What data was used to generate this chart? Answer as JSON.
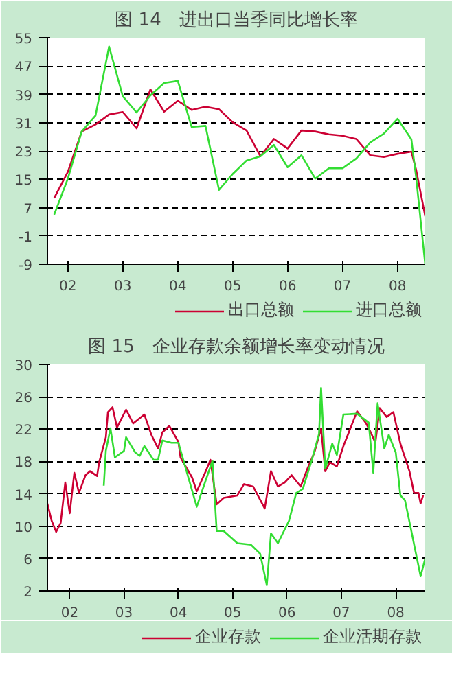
{
  "chart_data": [
    {
      "type": "line",
      "title": "图 14　进出口当季同比增长率",
      "xlim": [
        "2002-02-15",
        "2009-01-01"
      ],
      "ylim": [
        -9,
        55
      ],
      "yticks": [
        -9,
        -1,
        7,
        15,
        23,
        31,
        39,
        47,
        55
      ],
      "xticks": [
        {
          "value": "2002-07-01",
          "label": "02"
        },
        {
          "value": "2003-07-01",
          "label": "03"
        },
        {
          "value": "2004-07-01",
          "label": "04"
        },
        {
          "value": "2005-07-01",
          "label": "05"
        },
        {
          "value": "2006-07-01",
          "label": "06"
        },
        {
          "value": "2007-07-01",
          "label": "07"
        },
        {
          "value": "2008-07-01",
          "label": "08"
        }
      ],
      "grid": "y",
      "legend": "bottom",
      "line_style": "solid",
      "series": [
        {
          "name": "出口总额",
          "color": "#cc0033",
          "x": [
            "2002-04",
            "2002-07",
            "2002-10",
            "2003-01",
            "2003-04",
            "2003-07",
            "2003-10",
            "2004-01",
            "2004-04",
            "2004-07",
            "2004-10",
            "2005-01",
            "2005-04",
            "2005-07",
            "2005-10",
            "2006-01",
            "2006-04",
            "2006-07",
            "2006-10",
            "2007-01",
            "2007-04",
            "2007-07",
            "2007-10",
            "2008-01",
            "2008-04",
            "2008-07",
            "2008-10",
            "2008-11",
            "2009-01"
          ],
          "values": [
            9.7,
            17.1,
            28.5,
            30.5,
            33.3,
            34,
            29.4,
            40.4,
            34.1,
            37.2,
            34.6,
            35.5,
            34.8,
            31.1,
            28.8,
            21.5,
            26.4,
            23.7,
            28.8,
            28.5,
            27.7,
            27.3,
            26.4,
            21.8,
            21.3,
            22.2,
            22.8,
            17.8,
            4.6
          ]
        },
        {
          "name": "进口总额",
          "color": "#33dd33",
          "x": [
            "2002-04",
            "2002-07",
            "2002-10",
            "2003-01",
            "2003-04",
            "2003-07",
            "2003-10",
            "2004-01",
            "2004-04",
            "2004-07",
            "2004-10",
            "2005-01",
            "2005-04",
            "2005-07",
            "2005-10",
            "2006-01",
            "2006-04",
            "2006-07",
            "2006-10",
            "2007-01",
            "2007-04",
            "2007-07",
            "2007-10",
            "2008-01",
            "2008-04",
            "2008-07",
            "2008-10",
            "2008-11",
            "2009-01"
          ],
          "values": [
            5,
            15.2,
            28.5,
            33,
            52.5,
            38.5,
            33.9,
            38.7,
            42.2,
            42.8,
            29.8,
            30.1,
            12,
            16.5,
            20.3,
            21.5,
            24.7,
            18.4,
            21.8,
            15.2,
            18.1,
            18.1,
            20.9,
            25.4,
            27.9,
            32.1,
            26.3,
            15.8,
            -9
          ]
        }
      ]
    },
    {
      "type": "line",
      "title": "图 15　企业存款余额增长率变动情况",
      "xlim": [
        "2002-02-01",
        "2009-01-15"
      ],
      "ylim": [
        2,
        30
      ],
      "yticks": [
        2,
        6,
        10,
        14,
        18,
        22,
        26,
        30
      ],
      "xticks": [
        {
          "value": "2002-07-01",
          "label": "02"
        },
        {
          "value": "2003-07-01",
          "label": "03"
        },
        {
          "value": "2004-07-01",
          "label": "04"
        },
        {
          "value": "2005-07-01",
          "label": "05"
        },
        {
          "value": "2006-07-01",
          "label": "06"
        },
        {
          "value": "2007-07-01",
          "label": "07"
        },
        {
          "value": "2008-07-01",
          "label": "08"
        }
      ],
      "grid": "y",
      "legend": "bottom",
      "line_style": "solid",
      "series": [
        {
          "name": "企业存款",
          "color": "#cc0033",
          "x": [
            "2002-02-01",
            "2002-03-01",
            "2002-04-01",
            "2002-05-01",
            "2002-06-01",
            "2002-07-01",
            "2002-08-01",
            "2002-09-01",
            "2002-10-15",
            "2002-11-15",
            "2003-01-01",
            "2003-01-15",
            "2003-03-01",
            "2003-03-15",
            "2003-04-15",
            "2003-05-15",
            "2003-07-15",
            "2003-09-01",
            "2003-11-15",
            "2004-01-01",
            "2004-02-15",
            "2004-03-15",
            "2004-05-01",
            "2004-07-01",
            "2004-07-15",
            "2004-10-01",
            "2004-11-01",
            "2005-01-01",
            "2005-02-01",
            "2005-03-15",
            "2005-05-01",
            "2005-08-01",
            "2005-09-15",
            "2005-11-15",
            "2006-02-01",
            "2006-03-15",
            "2006-05-01",
            "2006-06-15",
            "2006-08-01",
            "2006-10-01",
            "2006-11-15",
            "2007-01-01",
            "2007-02-15",
            "2007-03-15",
            "2007-04-15",
            "2007-06-01",
            "2007-07-15",
            "2007-10-15",
            "2007-12-15",
            "2008-01-15",
            "2008-02-15",
            "2008-03-15",
            "2008-05-01",
            "2008-06-15",
            "2008-08-01",
            "2008-10-01",
            "2008-11-01",
            "2008-12-01",
            "2008-12-15",
            "2009-01-01"
          ],
          "values": [
            12.8,
            10.7,
            9.3,
            10.4,
            15.4,
            11.6,
            16.6,
            14.1,
            16.3,
            16.8,
            16.2,
            17.9,
            21,
            24.1,
            24.7,
            22.2,
            24.4,
            22.7,
            23.8,
            21.3,
            19.6,
            21.6,
            22.4,
            20.4,
            18.5,
            16,
            14.3,
            16.8,
            18.2,
            12.7,
            13.5,
            13.8,
            15.2,
            14.9,
            12.2,
            16.8,
            14.9,
            15.4,
            16.3,
            14.9,
            17.1,
            19.1,
            22.1,
            16.8,
            17.9,
            17.4,
            19.9,
            24.2,
            22.7,
            21.6,
            20.3,
            24.6,
            23.5,
            24.1,
            20.2,
            16.8,
            14.1,
            14.1,
            12.8,
            13.8
          ]
        },
        {
          "name": "企业活期存款",
          "color": "#33dd33",
          "x": [
            "2003-02-15",
            "2003-03-01",
            "2003-04-01",
            "2003-05-01",
            "2003-07-01",
            "2003-07-15",
            "2003-09-15",
            "2003-10-15",
            "2003-11-15",
            "2004-01-15",
            "2004-02-15",
            "2004-03-15",
            "2004-05-15",
            "2004-07-01",
            "2004-09-01",
            "2004-11-01",
            "2005-01-01",
            "2005-02-15",
            "2005-03-15",
            "2005-05-01",
            "2005-08-01",
            "2005-11-01",
            "2006-01-01",
            "2006-02-15",
            "2006-03-15",
            "2006-05-01",
            "2006-07-15",
            "2006-09-01",
            "2006-10-15",
            "2006-12-15",
            "2007-02-01",
            "2007-02-15",
            "2007-03-15",
            "2007-05-01",
            "2007-06-01",
            "2007-07-15",
            "2007-10-15",
            "2008-01-01",
            "2008-02-01",
            "2008-03-01",
            "2008-04-15",
            "2008-05-15",
            "2008-07-01",
            "2008-08-01",
            "2008-09-01",
            "2008-10-15",
            "2008-12-15",
            "2009-01-15"
          ],
          "values": [
            15,
            19.3,
            22.1,
            18.5,
            19.3,
            21,
            19.1,
            18.7,
            19.9,
            18.2,
            18.2,
            20.6,
            20.3,
            20.3,
            16.3,
            12.4,
            15.7,
            18.1,
            9.4,
            9.4,
            7.9,
            7.7,
            6.6,
            2.7,
            9.1,
            7.9,
            10.7,
            14.1,
            14.6,
            18.2,
            21.4,
            27.1,
            17.1,
            20.2,
            18.8,
            23.8,
            23.9,
            22.8,
            16.6,
            25.2,
            19.6,
            21.3,
            19.1,
            13.8,
            13.2,
            9.3,
            3.8,
            6
          ]
        }
      ]
    }
  ]
}
